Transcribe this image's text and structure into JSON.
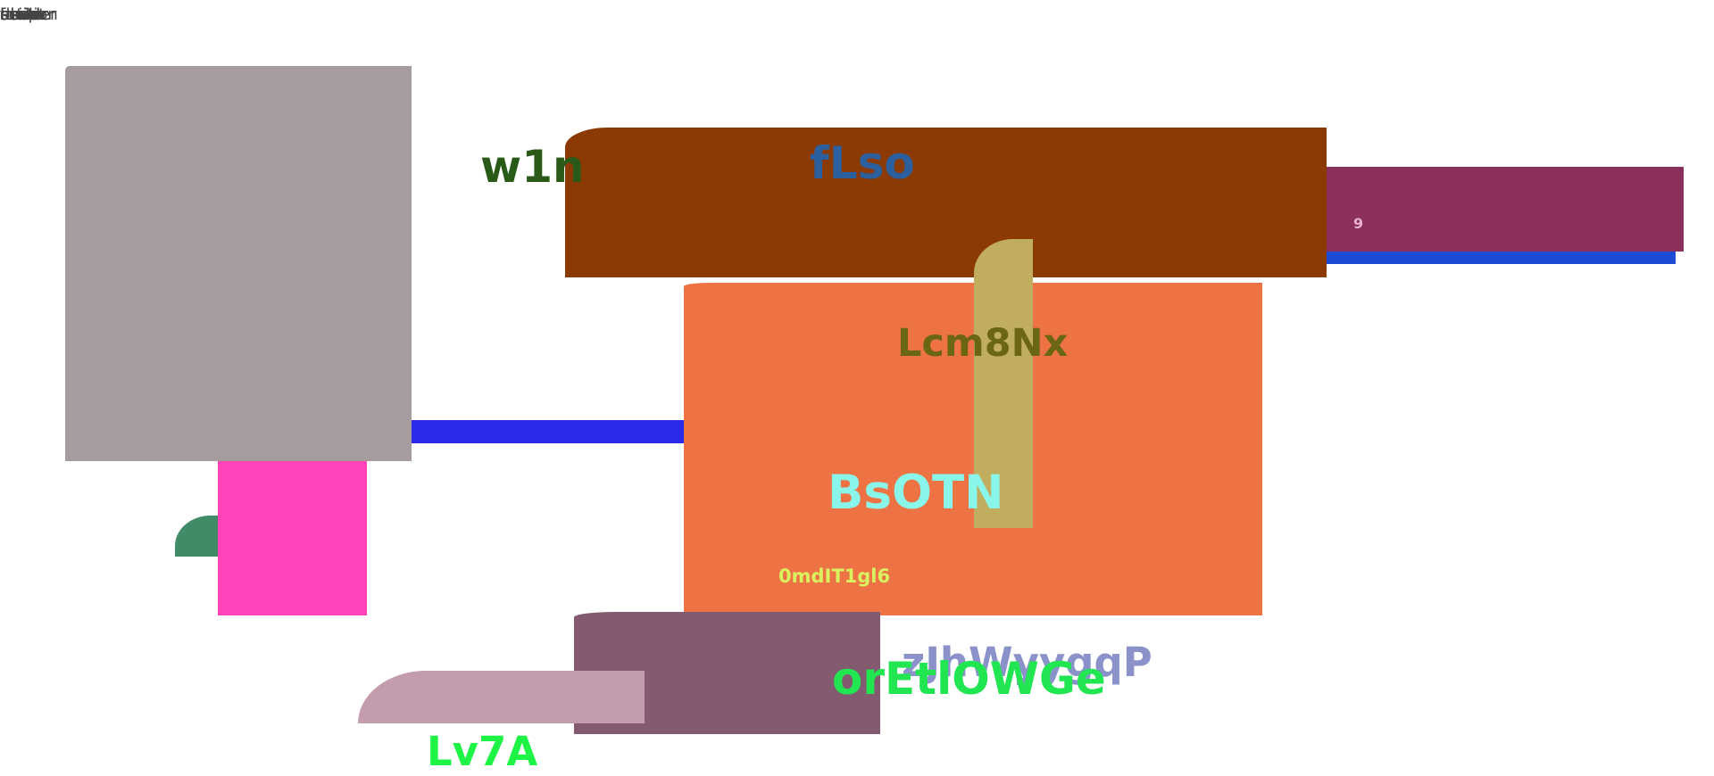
{
  "top_labels": [
    "main",
    "section",
    "nav",
    "header",
    "footer",
    "aside",
    "article",
    "ul",
    "div",
    "script"
  ],
  "texts": {
    "w1n": "w1n",
    "flso": "fLso",
    "nine": "9",
    "lcm": "Lcm8Nx",
    "bsotn": "BsOTN",
    "zero": "0mdIT1gl6",
    "zjh": "zJhWyygqP",
    "oret": "orEtlOWGe",
    "lv7a": "Lv7A"
  },
  "colors": {
    "gray": "#a69c9e",
    "blue_bar": "#2a2ae8",
    "pink": "#ff43b8",
    "green_quarter": "#418b66",
    "brown": "#8b3a04",
    "plum": "#8b2f5c",
    "blue_strip": "#1e4bd4",
    "orange": "#ed7344",
    "khaki": "#c1ad5e",
    "mauve": "#845a70",
    "rose": "#c39cad",
    "w1n": "#2a5a17",
    "flso": "#2c5f9e",
    "nine": "#e7b3d0",
    "lcm": "#6b6612",
    "bsotn": "#8af5e9",
    "zero": "#d9f25f",
    "zjh": "#8b92c9",
    "oret": "#22e552",
    "lv7a": "#1df446"
  }
}
